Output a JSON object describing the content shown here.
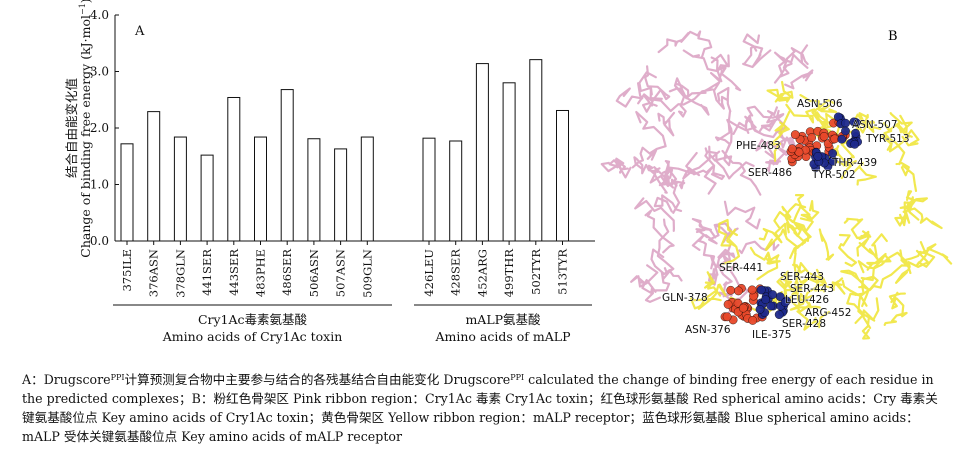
{
  "chart_data": {
    "type": "bar",
    "panel_label": "A",
    "ylabel_cn": "结合自由能变化值",
    "ylabel_en": "Change of binding free energy (kJ·mol",
    "ylabel_sup": "−1",
    "ylabel_end": ")",
    "ylim": [
      0,
      4.0
    ],
    "yticks": [
      "0.0",
      "1.0",
      "2.0",
      "3.0",
      "4.0"
    ],
    "grid": false,
    "groups": [
      {
        "label_cn": "Cry1Ac毒素氨基酸",
        "label_en": "Amino acids of Cry1Ac toxin",
        "categories": [
          "375ILE",
          "376ASN",
          "378GLN",
          "441SER",
          "443SER",
          "483PHE",
          "486SER",
          "506ASN",
          "507ASN",
          "509GLN"
        ],
        "values": [
          1.72,
          2.29,
          1.84,
          1.52,
          2.54,
          1.84,
          2.68,
          1.81,
          1.63,
          1.84
        ]
      },
      {
        "label_cn": "mALP氨基酸",
        "label_en": "Amino acids of mALP",
        "categories": [
          "426LEU",
          "428SER",
          "452ARG",
          "499THR",
          "502TYR",
          "513TYR"
        ],
        "values": [
          1.82,
          1.77,
          3.14,
          2.8,
          3.21,
          2.31
        ]
      }
    ]
  },
  "panel_b": {
    "label": "B",
    "residue_labels_red": [
      "ASN-506",
      "PHE-483",
      "SER-486",
      "SER-441",
      "GLN-378",
      "ASN-376",
      "ILE-375",
      "SER-443"
    ],
    "residue_labels_blue": [
      "ASN-507",
      "TYR-513",
      "THR-439",
      "TYR-502",
      "SER-443",
      "LEU-426",
      "ARG-452",
      "SER-428"
    ],
    "colors": {
      "pink_ribbon": "#dba4c4",
      "yellow_ribbon": "#f0e63c",
      "red_spheres": "#e8482a",
      "blue_spheres": "#1e2a8c"
    }
  },
  "caption": {
    "p1": "A：Drugscore",
    "sup1": "PPI",
    "p2": "计算预测复合物中主要参与结合的各残基结合自由能变化 Drugscore",
    "sup2": "PPI",
    "p3": " calculated the change of binding free energy of each residue in the predicted complexes；B：粉红色骨架区 Pink ribbon region：Cry1Ac 毒素 Cry1Ac toxin；红色球形氨基酸 Red spherical amino acids：Cry 毒素关键氨基酸位点 Key amino acids of Cry1Ac toxin；黄色骨架区 Yellow ribbon region：mALP receptor；蓝色球形氨基酸 Blue spherical amino acids：mALP 受体关键氨基酸位点 Key amino acids of mALP receptor"
  }
}
